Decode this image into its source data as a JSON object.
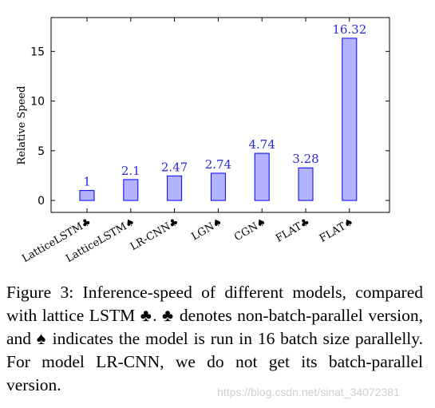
{
  "chart_data": {
    "type": "bar",
    "categories": [
      "LatticeLSTM♣",
      "LatticeLSTM♠",
      "LR-CNN♣",
      "LGN♠",
      "CGN♠",
      "FLAT♣",
      "FLAT♠"
    ],
    "values": [
      1,
      2.1,
      2.47,
      2.74,
      4.74,
      3.28,
      16.32
    ],
    "value_labels": [
      "1",
      "2.1",
      "2.47",
      "2.74",
      "4.74",
      "3.28",
      "16.32"
    ],
    "ylabel": "Relative Speed",
    "xlabel": "",
    "ylim": [
      -1.2,
      18.4
    ],
    "yticks": [
      0,
      5,
      10,
      15
    ],
    "grid": false,
    "colors": {
      "bar_fill": "#b3b3ff",
      "bar_stroke": "#0000ff",
      "label": "#2a2ad8"
    }
  },
  "caption": "Figure 3: Inference-speed of different models, compared with lattice LSTM ♣. ♣ denotes non-batch-parallel version, and ♠ indicates the model is run in 16 batch size parallelly. For model LR-CNN, we do not get its batch-parallel version.",
  "watermark": "https://blog.csdn.net/sinat_34072381"
}
